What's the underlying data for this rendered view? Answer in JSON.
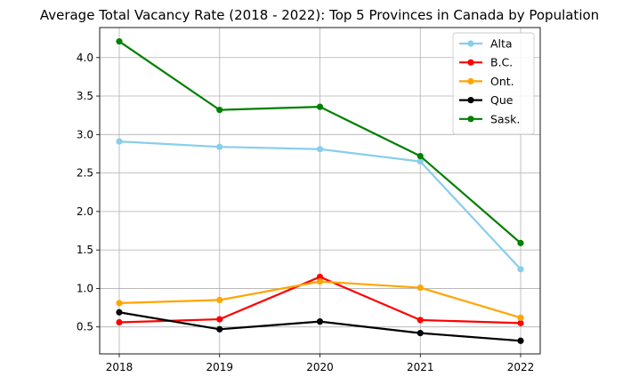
{
  "chart_data": {
    "type": "line",
    "title": "Average Total Vacancy Rate (2018 - 2022): Top 5 Provinces in Canada by Population",
    "xlabel": "",
    "ylabel": "",
    "categories": [
      "2018",
      "2019",
      "2020",
      "2021",
      "2022"
    ],
    "x_ticks": [
      "2018",
      "2019",
      "2020",
      "2021",
      "2022"
    ],
    "y_ticks": [
      "0.5",
      "1.0",
      "1.5",
      "2.0",
      "2.5",
      "3.0",
      "3.5",
      "4.0"
    ],
    "ylim": [
      0.15,
      4.39
    ],
    "grid": true,
    "legend_position": "upper right",
    "series": [
      {
        "name": "Alta",
        "color": "#87CEEB",
        "values": [
          2.91,
          2.84,
          2.81,
          2.65,
          1.25
        ]
      },
      {
        "name": "B.C.",
        "color": "#FF0000",
        "values": [
          0.56,
          0.6,
          1.15,
          0.59,
          0.55
        ]
      },
      {
        "name": "Ont.",
        "color": "#FFA500",
        "values": [
          0.81,
          0.85,
          1.09,
          1.01,
          0.62
        ]
      },
      {
        "name": "Que",
        "color": "#000000",
        "values": [
          0.69,
          0.47,
          0.57,
          0.42,
          0.32
        ]
      },
      {
        "name": "Sask.",
        "color": "#008000",
        "values": [
          4.21,
          3.32,
          3.36,
          2.72,
          1.59
        ]
      }
    ]
  }
}
